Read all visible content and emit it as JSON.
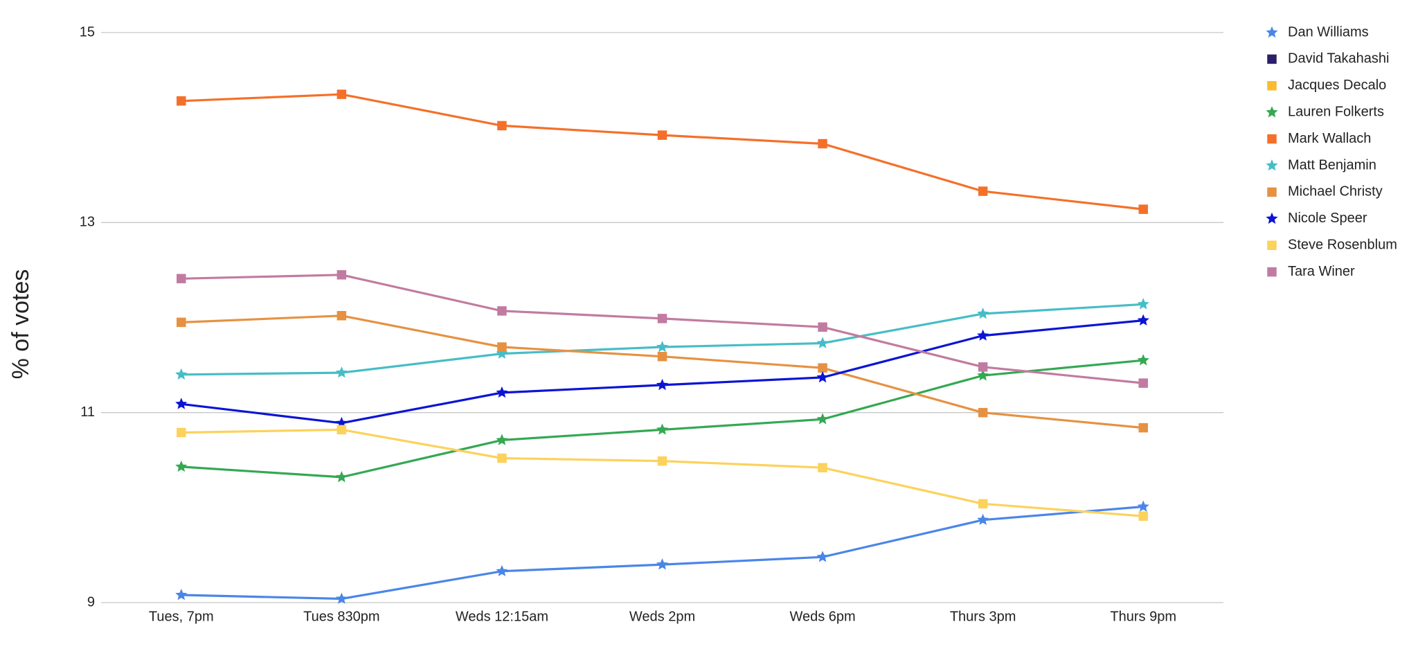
{
  "chart_data": {
    "type": "line",
    "y_label": "% of votes",
    "categories": [
      "Tues, 7pm",
      "Tues 830pm",
      "Weds 12:15am",
      "Weds 2pm",
      "Weds 6pm",
      "Thurs 3pm",
      "Thurs 9pm"
    ],
    "ylim": [
      9,
      15
    ],
    "yticks": [
      9,
      11,
      13,
      15
    ],
    "grid": true,
    "legend": "right",
    "series": [
      {
        "name": "Dan Williams",
        "color": "#4a86e8",
        "marker": "star",
        "values": [
          9.08,
          9.04,
          9.33,
          9.4,
          9.48,
          9.87,
          10.01
        ]
      },
      {
        "name": "David Takahashi",
        "color": "#2b1f6b",
        "marker": "square",
        "values": [
          null,
          null,
          null,
          null,
          null,
          null,
          null
        ]
      },
      {
        "name": "Jacques Decalo",
        "color": "#f9bc2c",
        "marker": "square",
        "values": [
          null,
          null,
          null,
          null,
          null,
          null,
          null
        ]
      },
      {
        "name": "Lauren Folkerts",
        "color": "#34a853",
        "marker": "star",
        "values": [
          10.43,
          10.32,
          10.71,
          10.82,
          10.93,
          11.39,
          11.55
        ]
      },
      {
        "name": "Mark Wallach",
        "color": "#f4702a",
        "marker": "square",
        "values": [
          14.28,
          14.35,
          14.02,
          13.92,
          13.83,
          13.33,
          13.14
        ]
      },
      {
        "name": "Matt Benjamin",
        "color": "#46bdc6",
        "marker": "star",
        "values": [
          11.4,
          11.42,
          11.62,
          11.69,
          11.73,
          12.04,
          12.14
        ]
      },
      {
        "name": "Michael Christy",
        "color": "#e69142",
        "marker": "square",
        "values": [
          11.95,
          12.02,
          11.69,
          11.59,
          11.47,
          11.0,
          10.84
        ]
      },
      {
        "name": "Nicole Speer",
        "color": "#0b14d4",
        "marker": "star",
        "values": [
          11.09,
          10.89,
          11.21,
          11.29,
          11.37,
          11.81,
          11.97
        ]
      },
      {
        "name": "Steve Rosenblum",
        "color": "#fcd25c",
        "marker": "square",
        "values": [
          10.79,
          10.82,
          10.52,
          10.49,
          10.42,
          10.04,
          9.91
        ]
      },
      {
        "name": "Tara Winer",
        "color": "#c27ba0",
        "marker": "square",
        "values": [
          12.41,
          12.45,
          12.07,
          11.99,
          11.9,
          11.48,
          11.31
        ]
      }
    ]
  }
}
